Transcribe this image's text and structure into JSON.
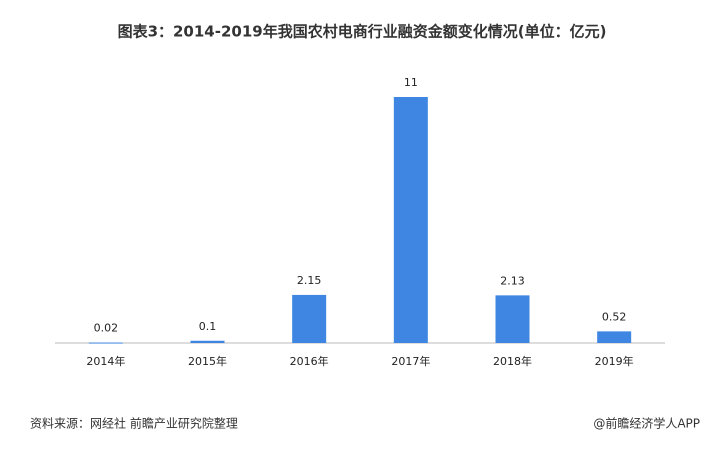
{
  "chart_data": {
    "type": "bar",
    "title": "图表3：2014-2019年我国农村电商行业融资金额变化情况(单位：亿元)",
    "categories": [
      "2014年",
      "2015年",
      "2016年",
      "2017年",
      "2018年",
      "2019年"
    ],
    "values": [
      0.02,
      0.1,
      2.15,
      11,
      2.13,
      0.52
    ],
    "color": "#3e86e2",
    "ylim": [
      0,
      11
    ],
    "source": "资料来源：网经社 前瞻产业研究院整理",
    "brand": "@前瞻经济学人APP"
  }
}
